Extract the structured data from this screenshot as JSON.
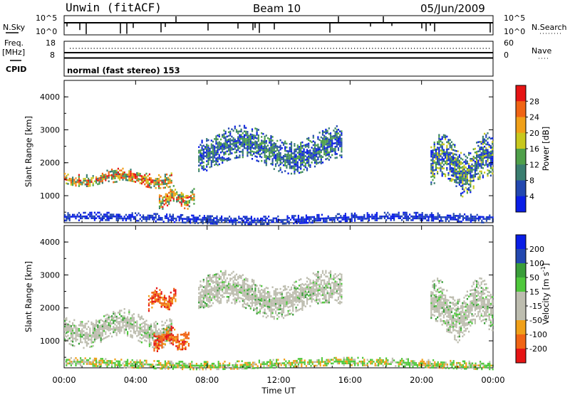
{
  "header": {
    "station": "Unwin (fitACF)",
    "beam": "Beam 10",
    "date": "05/Jun/2009"
  },
  "noise_panel": {
    "left_label": "N.Sky",
    "right_label": "N.Search",
    "left_ticks": [
      "10^5",
      "10^0"
    ],
    "right_ticks": [
      "10^5",
      "10^0"
    ]
  },
  "freq_panel": {
    "left_label": "Freq.",
    "left_unit": "[MHz]",
    "right_label": "Nave",
    "left_ticks": [
      "18",
      "8"
    ],
    "right_ticks": [
      "60",
      "0"
    ]
  },
  "cpid_panel": {
    "label": "CPID",
    "mode_text": "normal (fast stereo) 153"
  },
  "colors": {
    "power_scale": [
      "#0a1ee6",
      "#2348b0",
      "#3a7e70",
      "#4fa04a",
      "#c8c81e",
      "#f0a019",
      "#f06414",
      "#e61414"
    ],
    "velocity_scale": [
      "#e61414",
      "#f06414",
      "#f0a019",
      "#bdbdaf",
      "#bdbdaf",
      "#4fc83c",
      "#3a9e3a",
      "#2348b0",
      "#0a1ee6"
    ]
  },
  "chart_data": [
    {
      "type": "heatmap",
      "title": "",
      "xlabel": "",
      "ylabel": "Slant Range [km]",
      "x_ticks": [
        "00:00",
        "04:00",
        "08:00",
        "12:00",
        "16:00",
        "20:00",
        "00:00"
      ],
      "xlim_hours": [
        0,
        24
      ],
      "y_ticks": [
        1000,
        2000,
        3000,
        4000
      ],
      "ylim_km": [
        180,
        4500
      ],
      "colorbar": {
        "label": "Power [dB]",
        "ticks": [
          4,
          8,
          12,
          16,
          20,
          24,
          28
        ]
      },
      "echo_bands": [
        {
          "t_start": 0.0,
          "t_end": 6.0,
          "range_from_km": 1350,
          "range_to_km": 1750,
          "level": "high"
        },
        {
          "t_start": 5.3,
          "t_end": 7.3,
          "range_from_km": 700,
          "range_to_km": 1200,
          "level": "high"
        },
        {
          "t_start": 7.5,
          "t_end": 15.5,
          "range_from_km": 1900,
          "range_to_km": 2900,
          "level": "low-mid"
        },
        {
          "t_start": 20.5,
          "t_end": 24.0,
          "range_from_km": 1300,
          "range_to_km": 2600,
          "level": "mid"
        },
        {
          "t_start": 0.0,
          "t_end": 24.0,
          "range_from_km": 200,
          "range_to_km": 450,
          "level": "low"
        }
      ]
    },
    {
      "type": "heatmap",
      "title": "",
      "xlabel": "Time UT",
      "ylabel": "Slant Range [km]",
      "x_ticks": [
        "00:00",
        "04:00",
        "08:00",
        "12:00",
        "16:00",
        "20:00",
        "00:00"
      ],
      "xlim_hours": [
        0,
        24
      ],
      "y_ticks": [
        1000,
        2000,
        3000,
        4000
      ],
      "ylim_km": [
        180,
        4500
      ],
      "colorbar": {
        "label": "Velocity [m s",
        "label_superscript": "-1",
        "label_close": "]",
        "ticks": [
          200,
          100,
          50,
          15,
          -15,
          -50,
          -100,
          -200
        ]
      },
      "echo_bands": [
        {
          "t_start": 0.0,
          "t_end": 6.0,
          "range_from_km": 1000,
          "range_to_km": 1800,
          "level": "near-zero"
        },
        {
          "t_start": 5.0,
          "t_end": 7.0,
          "range_from_km": 800,
          "range_to_km": 1350,
          "level": "-100"
        },
        {
          "t_start": 4.7,
          "t_end": 6.2,
          "range_from_km": 2000,
          "range_to_km": 2500,
          "level": "-100"
        },
        {
          "t_start": 7.5,
          "t_end": 15.5,
          "range_from_km": 1900,
          "range_to_km": 2900,
          "level": "near-zero"
        },
        {
          "t_start": 20.5,
          "t_end": 24.0,
          "range_from_km": 1300,
          "range_to_km": 2600,
          "level": "near-zero"
        },
        {
          "t_start": 0.0,
          "t_end": 24.0,
          "range_from_km": 200,
          "range_to_km": 450,
          "level": "50"
        }
      ]
    }
  ]
}
